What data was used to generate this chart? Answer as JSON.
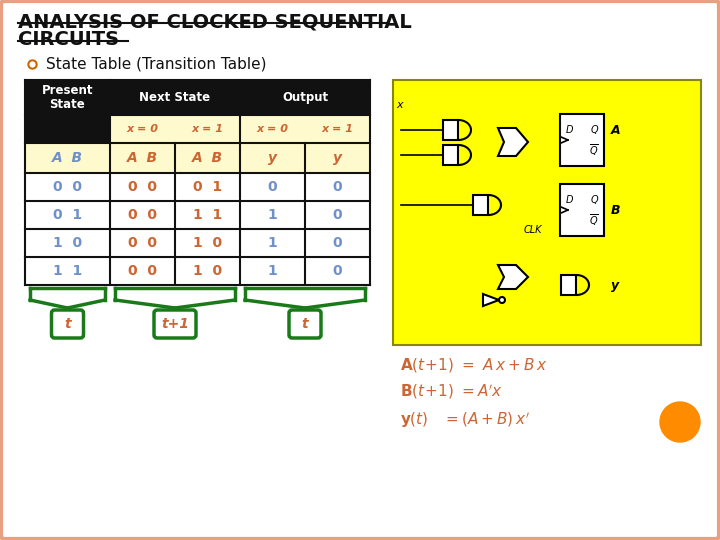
{
  "title_line1": "ANALYSIS OF CLOCKED SEQUENTIAL",
  "title_line2": "CIRCUITS",
  "subtitle": "State Table (Transition Table)",
  "bullet_color": "#CC6600",
  "background": "#FFFFFF",
  "border_color": "#E8A080",
  "table_header_bg": "#111111",
  "table_subheader_bg": "#FFFACD",
  "rows": [
    [
      "0  0",
      "0  0",
      "0  1",
      "0",
      "0"
    ],
    [
      "0  1",
      "0  0",
      "1  1",
      "1",
      "0"
    ],
    [
      "1  0",
      "0  0",
      "1  0",
      "1",
      "0"
    ],
    [
      "1  1",
      "0  0",
      "1  0",
      "1",
      "0"
    ]
  ],
  "present_state_color": "#7090CC",
  "next_state_color": "#CC6633",
  "output_color": "#7090CC",
  "circuit_bg": "#FFFF00",
  "orange_circle_color": "#FF8C00",
  "green": "#1a7a1a",
  "eq1_bold_color": "#CC6633",
  "eq1_plain_color": "#7090CC",
  "eq2_bold_color": "#CC6633",
  "eq2_plain_color": "#7090CC",
  "eq3_bold_color": "#CC6633",
  "eq3_plain_color": "#7090CC"
}
